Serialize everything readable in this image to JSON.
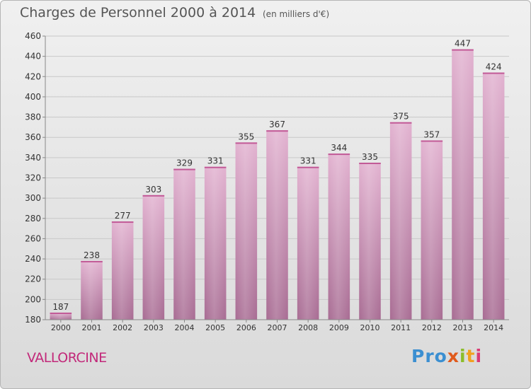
{
  "chart_data": {
    "type": "bar",
    "title": "Charges de Personnel 2000 à 2014",
    "subtitle": "(en milliers d'€)",
    "categories": [
      "2000",
      "2001",
      "2002",
      "2003",
      "2004",
      "2005",
      "2006",
      "2007",
      "2008",
      "2009",
      "2010",
      "2011",
      "2012",
      "2013",
      "2014"
    ],
    "values": [
      187,
      238,
      277,
      303,
      329,
      331,
      355,
      367,
      331,
      344,
      335,
      375,
      357,
      447,
      424
    ],
    "xlabel": "",
    "ylabel": "",
    "ylim": [
      180,
      460
    ],
    "yticks": [
      180,
      200,
      220,
      240,
      260,
      280,
      300,
      320,
      340,
      360,
      380,
      400,
      420,
      440,
      460
    ],
    "grid": true,
    "legend": "none",
    "bar_color": "#d9a0c2"
  },
  "footer": {
    "commune": "VALLORCINE",
    "logo": [
      "Pro",
      "x",
      "i",
      "t",
      "i"
    ]
  }
}
